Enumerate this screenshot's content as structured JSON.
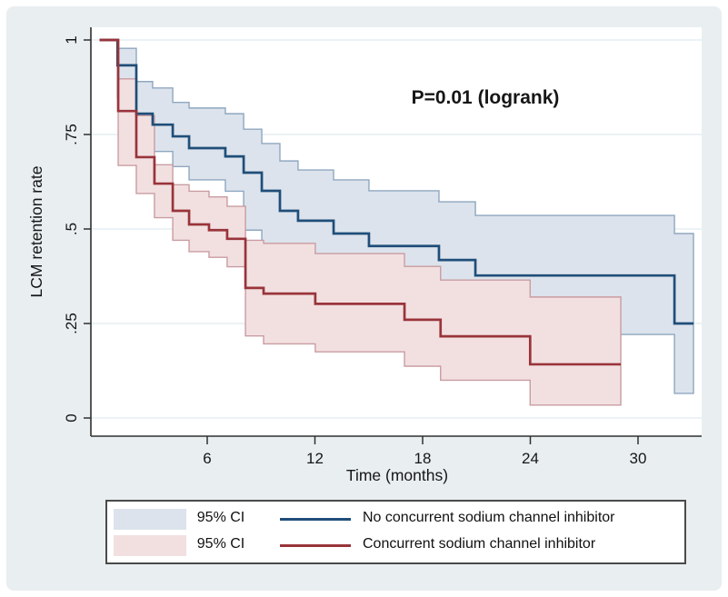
{
  "page": {
    "background_color": "#e9eef1",
    "plot_background_color": "#ffffff"
  },
  "chart_data": {
    "type": "line",
    "subtype": "kaplan-meier-step",
    "title": "",
    "annotation": "P=0.01 (logrank)",
    "xlabel": "Time (months)",
    "ylabel": "LCM retention rate",
    "x_ticks": [
      {
        "v": 6,
        "label": "6"
      },
      {
        "v": 12,
        "label": "12"
      },
      {
        "v": 18,
        "label": "18"
      },
      {
        "v": 24,
        "label": "24"
      },
      {
        "v": 30,
        "label": "30"
      }
    ],
    "y_ticks": [
      {
        "v": 0,
        "label": "0"
      },
      {
        "v": 0.25,
        "label": ".25"
      },
      {
        "v": 0.5,
        "label": ".5"
      },
      {
        "v": 0.75,
        "label": ".75"
      },
      {
        "v": 1,
        "label": "1"
      }
    ],
    "xlim": [
      -0.48,
      33.5
    ],
    "ylim": [
      -0.05,
      1.034
    ],
    "grid": true,
    "legend_position": "bottom",
    "bands": [
      {
        "name": "95% CI — No concurrent sodium channel inhibitor",
        "fill": "#dce3ec",
        "stroke": "#8fa7c0",
        "end_t": 33.09,
        "points_t_upper_lower": [
          [
            1.0,
            0.978,
            0.845
          ],
          [
            2.05,
            0.89,
            0.74
          ],
          [
            2.96,
            0.873,
            0.705
          ],
          [
            4.08,
            0.835,
            0.665
          ],
          [
            4.99,
            0.82,
            0.63
          ],
          [
            7.01,
            0.805,
            0.6
          ],
          [
            8.03,
            0.764,
            0.497
          ],
          [
            9.04,
            0.726,
            0.45
          ],
          [
            10.05,
            0.68,
            0.4
          ],
          [
            11.06,
            0.656,
            0.375
          ],
          [
            13.04,
            0.63,
            0.345
          ],
          [
            15.01,
            0.601,
            0.31
          ],
          [
            18.91,
            0.572,
            0.27
          ],
          [
            20.94,
            0.536,
            0.221
          ],
          [
            32.03,
            0.488,
            0.065
          ]
        ]
      },
      {
        "name": "95% CI — Concurrent sodium channel inhibitor",
        "fill": "#f2e0e1",
        "stroke": "#c99ca1",
        "end_t": 29.04,
        "points_t_upper_lower": [
          [
            1.04,
            0.897,
            0.668
          ],
          [
            2.05,
            0.8,
            0.594
          ],
          [
            3.06,
            0.67,
            0.53
          ],
          [
            4.08,
            0.617,
            0.47
          ],
          [
            4.99,
            0.6,
            0.44
          ],
          [
            6.1,
            0.585,
            0.425
          ],
          [
            7.11,
            0.56,
            0.4
          ],
          [
            8.13,
            0.47,
            0.217
          ],
          [
            9.14,
            0.462,
            0.196
          ],
          [
            12.02,
            0.435,
            0.175
          ],
          [
            16.99,
            0.401,
            0.137
          ],
          [
            19.0,
            0.365,
            0.1
          ],
          [
            23.99,
            0.32,
            0.034
          ]
        ]
      }
    ],
    "series": [
      {
        "name": "No concurrent sodium channel inhibitor",
        "color": "#1f4e79",
        "width": 2.7,
        "end_t": 33.09,
        "points_t_v": [
          [
            0,
            1.0
          ],
          [
            1.0,
            0.933
          ],
          [
            2.05,
            0.805
          ],
          [
            2.96,
            0.776
          ],
          [
            4.08,
            0.745
          ],
          [
            4.99,
            0.714
          ],
          [
            7.01,
            0.692
          ],
          [
            8.03,
            0.649
          ],
          [
            9.04,
            0.601
          ],
          [
            10.05,
            0.548
          ],
          [
            11.06,
            0.522
          ],
          [
            13.04,
            0.488
          ],
          [
            15.01,
            0.455
          ],
          [
            18.91,
            0.418
          ],
          [
            20.94,
            0.377
          ],
          [
            32.03,
            0.25
          ]
        ]
      },
      {
        "name": "Concurrent sodium channel inhibitor",
        "color": "#99343a",
        "width": 2.7,
        "end_t": 29.04,
        "points_t_v": [
          [
            0,
            1.0
          ],
          [
            1.04,
            0.812
          ],
          [
            2.05,
            0.69
          ],
          [
            3.06,
            0.62
          ],
          [
            4.08,
            0.548
          ],
          [
            4.99,
            0.512
          ],
          [
            6.1,
            0.497
          ],
          [
            7.11,
            0.474
          ],
          [
            8.13,
            0.344
          ],
          [
            9.14,
            0.329
          ],
          [
            12.02,
            0.302
          ],
          [
            16.99,
            0.26
          ],
          [
            19.0,
            0.216
          ],
          [
            23.99,
            0.142
          ]
        ]
      }
    ]
  },
  "legend": {
    "rows": [
      {
        "ci_label": "95% CI",
        "swatch_color": "#dce3ec",
        "line_color": "#1f4e79",
        "series_label": "No concurrent sodium channel inhibitor"
      },
      {
        "ci_label": "95% CI",
        "swatch_color": "#f2e0e1",
        "line_color": "#99343a",
        "series_label": "Concurrent sodium channel inhibitor"
      }
    ]
  }
}
